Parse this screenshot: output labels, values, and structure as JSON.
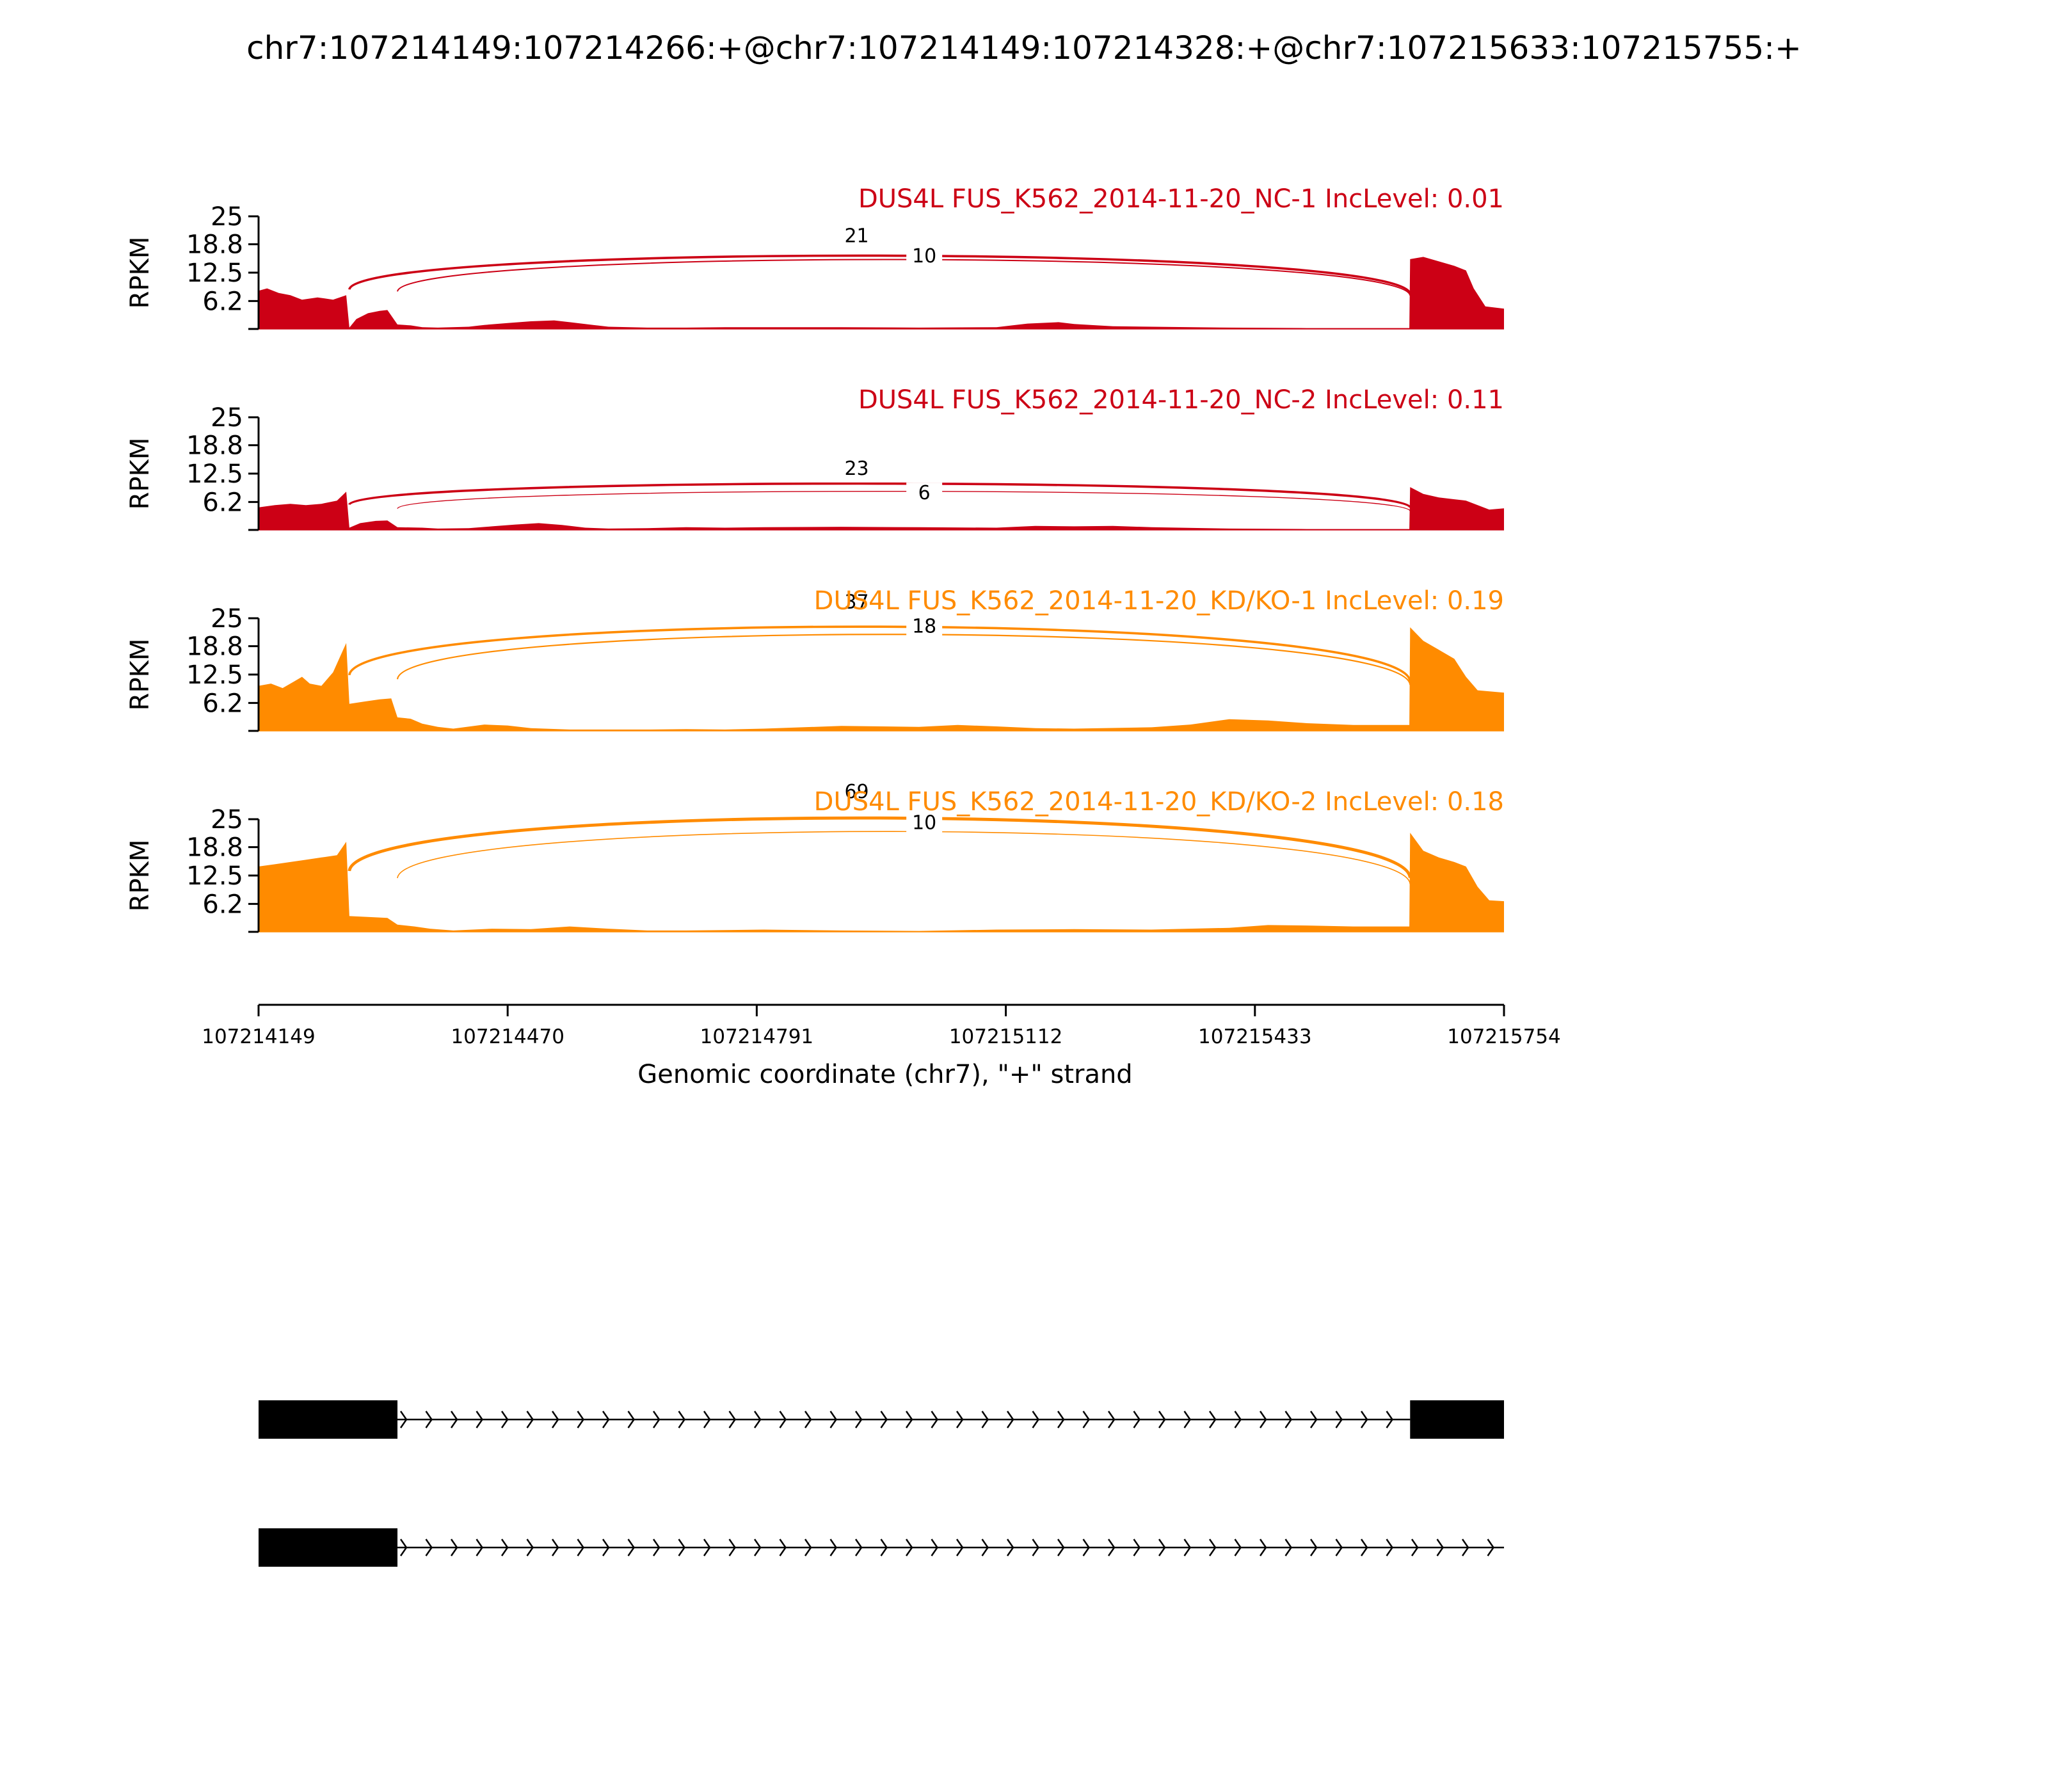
{
  "title": "chr7:107214149:107214266:+@chr7:107214149:107214328:+@chr7:107215633:107215755:+",
  "colors": {
    "nc": "#cc0015",
    "kd": "#ff8b00",
    "axis": "#000000",
    "gene": "#000000"
  },
  "chart_data": {
    "type": "area",
    "title": "chr7:107214149:107214266:+@chr7:107214149:107214328:+@chr7:107215633:107215755:+",
    "xlabel": "Genomic coordinate (chr7), \"+\" strand",
    "ylabel": "RPKM",
    "xlim": [
      107214149,
      107215754
    ],
    "ylim": [
      0,
      25
    ],
    "xticks": [
      "107214149",
      "107214470",
      "107214791",
      "107215112",
      "107215433",
      "107215754"
    ],
    "yticks": [
      "6.2",
      "12.5",
      "18.8",
      "25"
    ],
    "tracks": [
      {
        "label": "DUS4L FUS_K562_2014-11-20_NC-1 IncLevel: 0.01",
        "color": "#cc0015",
        "coverage": [
          [
            107214149,
            8.5
          ],
          [
            107214160,
            9
          ],
          [
            107214175,
            8
          ],
          [
            107214190,
            7.5
          ],
          [
            107214205,
            6.5
          ],
          [
            107214225,
            7
          ],
          [
            107214245,
            6.5
          ],
          [
            107214262,
            7.5
          ],
          [
            107214266,
            0.3
          ],
          [
            107214275,
            2.2
          ],
          [
            107214290,
            3.5
          ],
          [
            107214305,
            4
          ],
          [
            107214315,
            4.2
          ],
          [
            107214328,
            1
          ],
          [
            107214345,
            0.8
          ],
          [
            107214360,
            0.4
          ],
          [
            107214380,
            0.3
          ],
          [
            107214420,
            0.5
          ],
          [
            107214440,
            0.9
          ],
          [
            107214470,
            1.3
          ],
          [
            107214500,
            1.7
          ],
          [
            107214530,
            1.9
          ],
          [
            107214550,
            1.5
          ],
          [
            107214580,
            0.9
          ],
          [
            107214600,
            0.5
          ],
          [
            107214650,
            0.3
          ],
          [
            107214700,
            0.3
          ],
          [
            107214750,
            0.4
          ],
          [
            107214800,
            0.4
          ],
          [
            107214900,
            0.4
          ],
          [
            107215000,
            0.3
          ],
          [
            107215100,
            0.4
          ],
          [
            107215140,
            1.2
          ],
          [
            107215180,
            1.5
          ],
          [
            107215200,
            1.1
          ],
          [
            107215250,
            0.6
          ],
          [
            107215300,
            0.5
          ],
          [
            107215400,
            0.3
          ],
          [
            107215500,
            0.2
          ],
          [
            107215560,
            0.2
          ],
          [
            107215632,
            0.2
          ],
          [
            107215633,
            15.5
          ],
          [
            107215650,
            16
          ],
          [
            107215670,
            15
          ],
          [
            107215690,
            14
          ],
          [
            107215705,
            13
          ],
          [
            107215715,
            9
          ],
          [
            107215730,
            5
          ],
          [
            107215754,
            4.5
          ]
        ],
        "junctions": [
          {
            "donor": 107214266,
            "acceptor": 107215633,
            "count": "21",
            "height": 19.5,
            "weight": 1.8
          },
          {
            "donor": 107214328,
            "acceptor": 107215633,
            "count": "10",
            "height": 18.5,
            "weight": 1.0
          }
        ]
      },
      {
        "label": "DUS4L FUS_K562_2014-11-20_NC-2 IncLevel: 0.11",
        "color": "#cc0015",
        "coverage": [
          [
            107214149,
            5
          ],
          [
            107214170,
            5.5
          ],
          [
            107214190,
            5.8
          ],
          [
            107214210,
            5.5
          ],
          [
            107214230,
            5.8
          ],
          [
            107214250,
            6.5
          ],
          [
            107214262,
            8.5
          ],
          [
            107214266,
            0.5
          ],
          [
            107214280,
            1.5
          ],
          [
            107214300,
            2
          ],
          [
            107214315,
            2.1
          ],
          [
            107214328,
            0.6
          ],
          [
            107214360,
            0.5
          ],
          [
            107214380,
            0.3
          ],
          [
            107214420,
            0.4
          ],
          [
            107214450,
            0.8
          ],
          [
            107214480,
            1.2
          ],
          [
            107214510,
            1.5
          ],
          [
            107214540,
            1.1
          ],
          [
            107214570,
            0.5
          ],
          [
            107214600,
            0.3
          ],
          [
            107214650,
            0.4
          ],
          [
            107214700,
            0.6
          ],
          [
            107214750,
            0.5
          ],
          [
            107214800,
            0.6
          ],
          [
            107214900,
            0.7
          ],
          [
            107215000,
            0.6
          ],
          [
            107215100,
            0.5
          ],
          [
            107215150,
            0.9
          ],
          [
            107215200,
            0.8
          ],
          [
            107215250,
            0.9
          ],
          [
            107215300,
            0.6
          ],
          [
            107215400,
            0.3
          ],
          [
            107215500,
            0.2
          ],
          [
            107215632,
            0.2
          ],
          [
            107215633,
            9.5
          ],
          [
            107215650,
            8
          ],
          [
            107215670,
            7.2
          ],
          [
            107215690,
            6.8
          ],
          [
            107215705,
            6.5
          ],
          [
            107215720,
            5.5
          ],
          [
            107215735,
            4.5
          ],
          [
            107215754,
            4.8
          ]
        ],
        "junctions": [
          {
            "donor": 107214266,
            "acceptor": 107215633,
            "count": "23",
            "height": 12.5,
            "weight": 1.8
          },
          {
            "donor": 107214328,
            "acceptor": 107215633,
            "count": "6",
            "height": 10.5,
            "weight": 0.7
          }
        ]
      },
      {
        "label": "DUS4L FUS_K562_2014-11-20_KD/KO-1 IncLevel: 0.19",
        "color": "#ff8b00",
        "coverage": [
          [
            107214149,
            10
          ],
          [
            107214165,
            10.5
          ],
          [
            107214180,
            9.5
          ],
          [
            107214195,
            11
          ],
          [
            107214205,
            12
          ],
          [
            107214215,
            10.5
          ],
          [
            107214230,
            10
          ],
          [
            107214245,
            13
          ],
          [
            107214258,
            18
          ],
          [
            107214262,
            19.5
          ],
          [
            107214266,
            6
          ],
          [
            107214285,
            6.5
          ],
          [
            107214305,
            7
          ],
          [
            107214320,
            7.2
          ],
          [
            107214328,
            3
          ],
          [
            107214345,
            2.7
          ],
          [
            107214360,
            1.6
          ],
          [
            107214380,
            0.9
          ],
          [
            107214400,
            0.5
          ],
          [
            107214440,
            1.4
          ],
          [
            107214470,
            1.2
          ],
          [
            107214500,
            0.6
          ],
          [
            107214550,
            0.3
          ],
          [
            107214600,
            0.3
          ],
          [
            107214650,
            0.3
          ],
          [
            107214700,
            0.4
          ],
          [
            107214750,
            0.3
          ],
          [
            107214800,
            0.5
          ],
          [
            107214900,
            1.1
          ],
          [
            107215000,
            0.9
          ],
          [
            107215050,
            1.3
          ],
          [
            107215100,
            1
          ],
          [
            107215150,
            0.6
          ],
          [
            107215200,
            0.5
          ],
          [
            107215300,
            0.8
          ],
          [
            107215350,
            1.4
          ],
          [
            107215400,
            2.6
          ],
          [
            107215450,
            2.3
          ],
          [
            107215500,
            1.7
          ],
          [
            107215560,
            1.3
          ],
          [
            107215632,
            1.3
          ],
          [
            107215633,
            23
          ],
          [
            107215650,
            20
          ],
          [
            107215670,
            18
          ],
          [
            107215690,
            16
          ],
          [
            107215705,
            12
          ],
          [
            107215720,
            9
          ],
          [
            107215754,
            8.5
          ]
        ],
        "junctions": [
          {
            "donor": 107214266,
            "acceptor": 107215633,
            "count": "37",
            "height": 27.5,
            "weight": 1.8
          },
          {
            "donor": 107214328,
            "acceptor": 107215633,
            "count": "18",
            "height": 25.5,
            "weight": 1.1
          }
        ]
      },
      {
        "label": "DUS4L FUS_K562_2014-11-20_KD/KO-2 IncLevel: 0.18",
        "color": "#ff8b00",
        "coverage": [
          [
            107214149,
            14.5
          ],
          [
            107214170,
            15
          ],
          [
            107214190,
            15.5
          ],
          [
            107214210,
            16
          ],
          [
            107214230,
            16.5
          ],
          [
            107214250,
            17
          ],
          [
            107214262,
            20
          ],
          [
            107214266,
            3.5
          ],
          [
            107214290,
            3.3
          ],
          [
            107214315,
            3.1
          ],
          [
            107214328,
            1.6
          ],
          [
            107214350,
            1.2
          ],
          [
            107214370,
            0.7
          ],
          [
            107214400,
            0.3
          ],
          [
            107214450,
            0.7
          ],
          [
            107214500,
            0.6
          ],
          [
            107214550,
            1.2
          ],
          [
            107214600,
            0.7
          ],
          [
            107214650,
            0.3
          ],
          [
            107214700,
            0.3
          ],
          [
            107214800,
            0.5
          ],
          [
            107214900,
            0.3
          ],
          [
            107215000,
            0.2
          ],
          [
            107215100,
            0.5
          ],
          [
            107215200,
            0.6
          ],
          [
            107215300,
            0.5
          ],
          [
            107215400,
            0.9
          ],
          [
            107215450,
            1.5
          ],
          [
            107215500,
            1.4
          ],
          [
            107215560,
            1.2
          ],
          [
            107215632,
            1.2
          ],
          [
            107215633,
            22
          ],
          [
            107215650,
            18
          ],
          [
            107215670,
            16.5
          ],
          [
            107215690,
            15.5
          ],
          [
            107215705,
            14.5
          ],
          [
            107215720,
            10
          ],
          [
            107215735,
            7
          ],
          [
            107215754,
            6.8
          ]
        ],
        "junctions": [
          {
            "donor": 107214266,
            "acceptor": 107215633,
            "count": "69",
            "height": 30,
            "weight": 2.4
          },
          {
            "donor": 107214328,
            "acceptor": 107215633,
            "count": "10",
            "height": 26.5,
            "weight": 0.8
          }
        ]
      }
    ],
    "isoforms": [
      {
        "exons": [
          [
            107214149,
            107214328
          ],
          [
            107215633,
            107215754
          ]
        ]
      },
      {
        "exons": [
          [
            107214149,
            107214328
          ]
        ]
      }
    ]
  }
}
